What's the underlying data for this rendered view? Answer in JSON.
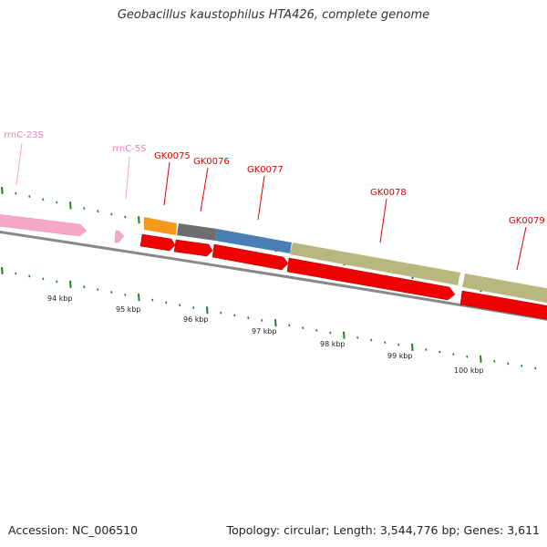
{
  "title": {
    "organism": "Geobacillus kaustophilus HTA426",
    "suffix": ", complete genome"
  },
  "footer": {
    "accession_label": "Accession:",
    "accession_value": "NC_006510",
    "summary": "Topology: circular; Length: 3,544,776 bp; Genes: 3,611"
  },
  "colors": {
    "rrna": "#f4a7c6",
    "rrna_label": "#f080b0",
    "cds": "#ee0000",
    "gene_label": "#dd0000",
    "backbone": "#888888",
    "ticks": "#2a7a2a",
    "orange_feature": "#f39a1e",
    "gray_feature": "#6e6e6e",
    "blue_feature": "#4a7fb5",
    "olive_feature": "#b8b87e"
  },
  "map": {
    "tick_labels": [
      "94 kbp",
      "95 kbp",
      "96 kbp",
      "97 kbp",
      "98 kbp",
      "99 kbp",
      "100 kbp"
    ],
    "rrna_labels": [
      "rrnC-23S",
      "rrnC-5S"
    ],
    "gene_labels": [
      "GK0075",
      "GK0076",
      "GK0077",
      "GK0078",
      "GK0079"
    ],
    "features": [
      {
        "name": "rrnC-23S",
        "kind": "rRNA",
        "strand": "+"
      },
      {
        "name": "rrnC-5S",
        "kind": "rRNA",
        "strand": "+"
      },
      {
        "name": "GK0075",
        "kind": "CDS",
        "strand": "+"
      },
      {
        "name": "GK0076",
        "kind": "CDS",
        "strand": "+"
      },
      {
        "name": "GK0077",
        "kind": "CDS",
        "strand": "+"
      },
      {
        "name": "GK0078",
        "kind": "CDS",
        "strand": "+"
      },
      {
        "name": "GK0079",
        "kind": "CDS",
        "strand": "+"
      }
    ]
  }
}
